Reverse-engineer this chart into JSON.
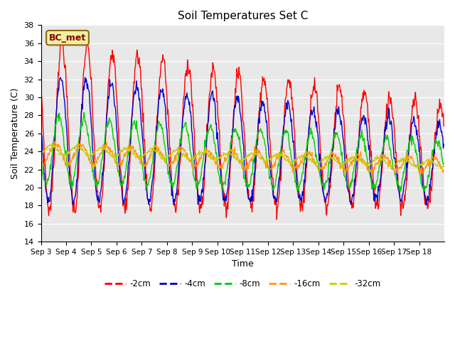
{
  "title": "Soil Temperatures Set C",
  "xlabel": "Time",
  "ylabel": "Soil Temperature (C)",
  "ylim": [
    14,
    38
  ],
  "yticks": [
    14,
    16,
    18,
    20,
    22,
    24,
    26,
    28,
    30,
    32,
    34,
    36,
    38
  ],
  "annotation": "BC_met",
  "bg_color": "#e8e8e8",
  "series_colors": [
    "#ff0000",
    "#0000cc",
    "#00cc00",
    "#ff9900",
    "#cccc00"
  ],
  "series_labels": [
    "-2cm",
    "-4cm",
    "-8cm",
    "-16cm",
    "-32cm"
  ],
  "x_tick_labels": [
    "Sep 3",
    "Sep 4",
    "Sep 5",
    "Sep 6",
    "Sep 7",
    "Sep 8",
    "Sep 9",
    "Sep 10",
    "Sep 11",
    "Sep 12",
    "Sep 13",
    "Sep 14",
    "Sep 15",
    "Sep 16",
    "Sep 17",
    "Sep 18"
  ],
  "n_days": 16,
  "points_per_day": 48
}
